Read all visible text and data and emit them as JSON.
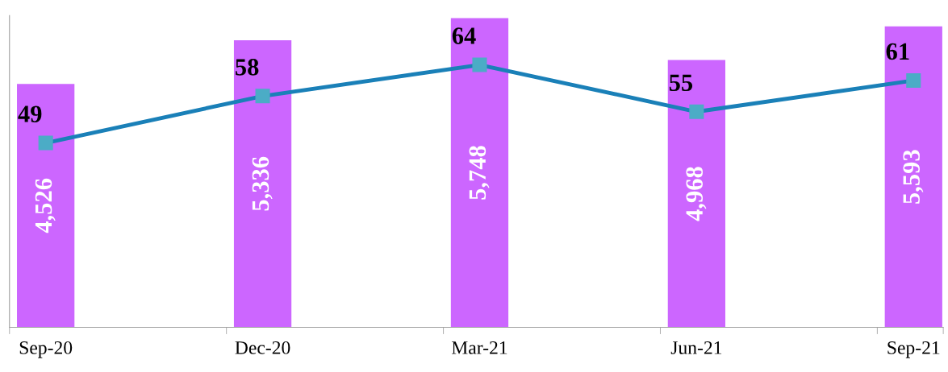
{
  "chart_data": {
    "type": "bar",
    "categories": [
      "Sep-20",
      "Dec-20",
      "Mar-21",
      "Jun-21",
      "Sep-21"
    ],
    "series": [
      {
        "color": "#cc66ff",
        "values": [
          4526,
          5336,
          5748,
          4968,
          5593
        ],
        "value_labels": [
          "4,526",
          "5,336",
          "5,748",
          "4,968",
          "5,593"
        ]
      },
      {
        "type": "line",
        "axis": "y2",
        "color": "#1a80b8",
        "values": [
          49,
          58,
          64,
          55,
          61
        ]
      }
    ],
    "data_labels": true,
    "tick_labels": "x",
    "grid": false,
    "legend": false,
    "marker": "square",
    "line_style": "solid"
  }
}
